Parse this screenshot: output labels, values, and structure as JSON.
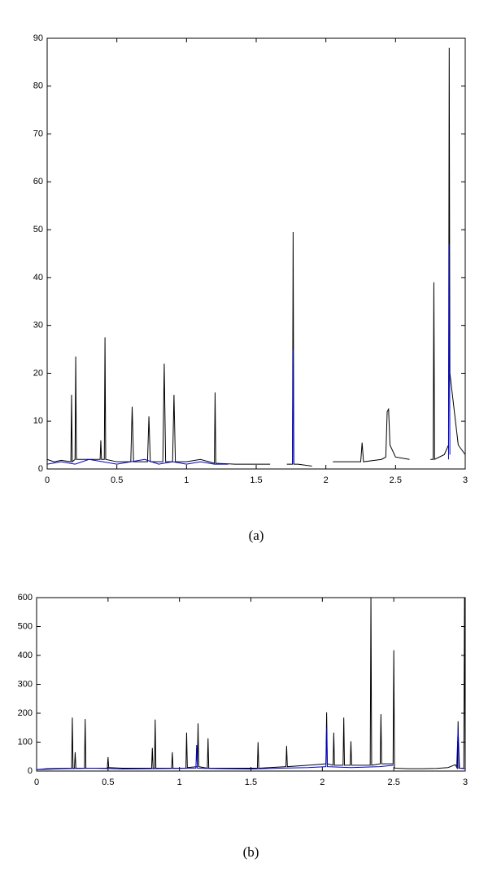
{
  "chart_data": [
    {
      "type": "line",
      "caption": "(a)",
      "xlim": [
        0,
        3
      ],
      "xticks": [
        0,
        0.5,
        1,
        1.5,
        2,
        2.5,
        3
      ],
      "ylim": [
        0,
        90
      ],
      "yticks": [
        0,
        10,
        20,
        30,
        40,
        50,
        60,
        70,
        80,
        90
      ],
      "series": [
        {
          "color": "#000000",
          "x": [
            0,
            0.05,
            0.1,
            0.17,
            0.175,
            0.18,
            0.2,
            0.205,
            0.21,
            0.3,
            0.38,
            0.385,
            0.39,
            0.41,
            0.415,
            0.42,
            0.5,
            0.6,
            0.61,
            0.62,
            0.72,
            0.73,
            0.74,
            0.83,
            0.84,
            0.85,
            0.9,
            0.91,
            0.92,
            1.0,
            1.1,
            1.2,
            1.205,
            1.21,
            1.35,
            1.5,
            1.6,
            1.68,
            1.72,
            1.76,
            1.765,
            1.77,
            1.8,
            1.9,
            1.98,
            2.05,
            2.25,
            2.26,
            2.27,
            2.4,
            2.43,
            2.44,
            2.45,
            2.46,
            2.5,
            2.6,
            2.68,
            2.75,
            2.77,
            2.775,
            2.78,
            2.85,
            2.88,
            2.885,
            2.89,
            2.95,
            3.0
          ],
          "values": [
            2,
            1.5,
            1.8,
            1.5,
            15.5,
            1.5,
            2,
            23.5,
            2,
            2,
            2,
            6,
            2,
            2,
            27.5,
            2,
            1.5,
            1.5,
            13,
            1.5,
            1.5,
            11,
            1.5,
            1.5,
            22,
            1.5,
            1.5,
            15.5,
            1.5,
            1.5,
            2,
            1.2,
            16,
            1.2,
            1,
            1,
            1,
            null,
            1,
            1,
            49.5,
            1,
            1,
            0.6,
            null,
            1.5,
            1.5,
            5.5,
            1.5,
            2,
            2.5,
            12,
            12.5,
            5,
            2.5,
            2,
            null,
            2,
            2,
            39,
            2,
            3,
            5,
            88,
            20,
            5,
            3
          ]
        },
        {
          "color": "#0000cc",
          "x": [
            0,
            0.1,
            0.2,
            0.3,
            0.4,
            0.5,
            0.6,
            0.7,
            0.8,
            0.9,
            1.0,
            1.1,
            1.2,
            1.3,
            1.5,
            1.76,
            1.765,
            1.77,
            2.0,
            2.88,
            2.885,
            2.89
          ],
          "values": [
            1,
            1.5,
            1,
            2,
            1.5,
            1,
            1.5,
            2,
            1,
            1.5,
            1,
            1.5,
            1,
            1,
            null,
            1,
            25,
            1,
            null,
            2,
            47,
            3
          ]
        }
      ]
    },
    {
      "type": "line",
      "caption": "(b)",
      "xlim": [
        0,
        3
      ],
      "xticks": [
        0,
        0.5,
        1,
        1.5,
        2,
        2.5,
        3
      ],
      "ylim": [
        0,
        600
      ],
      "yticks": [
        0,
        100,
        200,
        300,
        400,
        500,
        600
      ],
      "series": [
        {
          "color": "#000000",
          "x": [
            0,
            0.07,
            0.245,
            0.25,
            0.255,
            0.265,
            0.27,
            0.275,
            0.335,
            0.34,
            0.345,
            0.495,
            0.5,
            0.505,
            0.6,
            0.805,
            0.81,
            0.815,
            0.825,
            0.83,
            0.835,
            0.945,
            0.95,
            0.955,
            1.045,
            1.05,
            1.055,
            1.125,
            1.13,
            1.135,
            1.195,
            1.2,
            1.205,
            1.4,
            1.545,
            1.55,
            1.555,
            1.745,
            1.75,
            1.755,
            1.9,
            2.025,
            2.03,
            2.035,
            2.075,
            2.08,
            2.085,
            2.145,
            2.15,
            2.155,
            2.195,
            2.2,
            2.205,
            2.335,
            2.34,
            2.345,
            2.405,
            2.41,
            2.415,
            2.495,
            2.5,
            2.505,
            2.6,
            2.7,
            2.8,
            2.88,
            2.93,
            2.945,
            2.95,
            2.955,
            2.99,
            2.995,
            3.0
          ],
          "values": [
            5,
            8,
            10,
            185,
            10,
            10,
            65,
            10,
            10,
            180,
            10,
            10,
            48,
            12,
            10,
            10,
            80,
            10,
            10,
            178,
            10,
            10,
            65,
            10,
            10,
            133,
            12,
            15,
            165,
            15,
            10,
            113,
            10,
            10,
            10,
            100,
            10,
            15,
            87,
            15,
            20,
            25,
            203,
            25,
            20,
            133,
            20,
            20,
            185,
            20,
            20,
            103,
            20,
            20,
            600,
            20,
            25,
            197,
            25,
            25,
            418,
            10,
            8,
            8,
            9,
            12,
            22,
            10,
            172,
            10,
            10,
            600,
            5
          ]
        },
        {
          "color": "#0000cc",
          "x": [
            0,
            0.2,
            0.4,
            0.6,
            0.8,
            1.0,
            1.115,
            1.12,
            1.125,
            1.3,
            1.5,
            1.7,
            1.9,
            2.025,
            2.03,
            2.035,
            2.2,
            2.4,
            2.5,
            2.7,
            2.94,
            2.95,
            2.96,
            3.0
          ],
          "values": [
            5,
            8,
            10,
            7,
            8,
            9,
            10,
            90,
            10,
            8,
            7,
            10,
            12,
            15,
            150,
            15,
            12,
            15,
            20,
            null,
            10,
            145,
            10,
            8
          ]
        }
      ]
    }
  ]
}
